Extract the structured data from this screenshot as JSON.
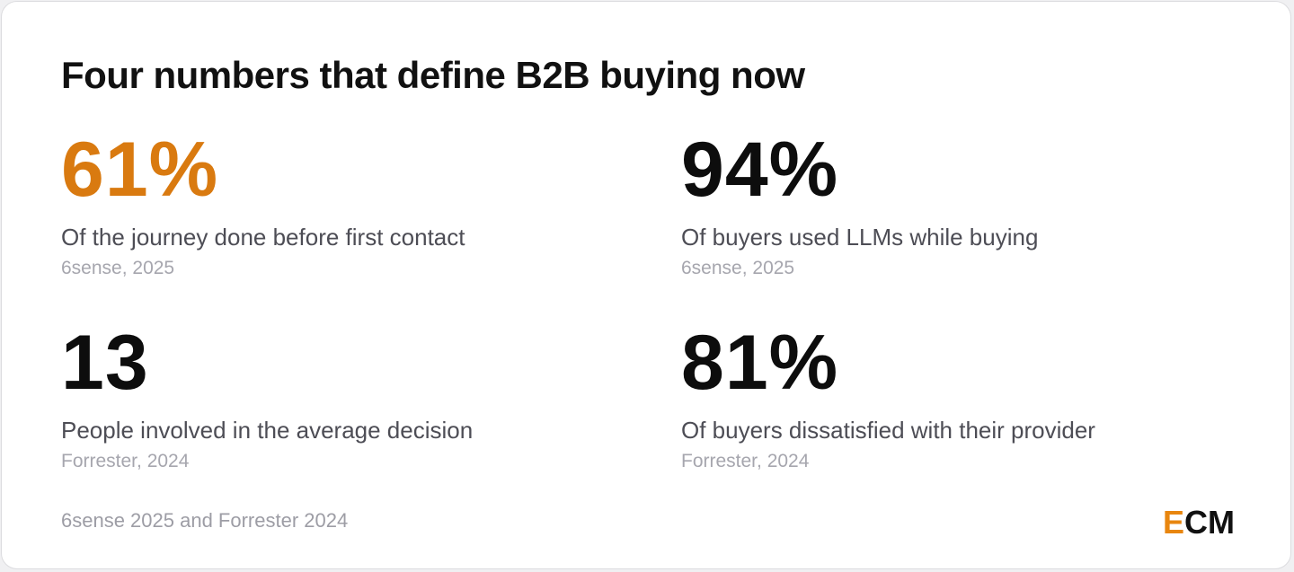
{
  "title": "Four numbers that define B2B buying now",
  "stats": [
    {
      "value": "61%",
      "label": "Of the journey done before first contact",
      "source": "6sense, 2025"
    },
    {
      "value": "94%",
      "label": "Of buyers used LLMs while buying",
      "source": "6sense, 2025"
    },
    {
      "value": "13",
      "label": "People involved in the average decision",
      "source": "Forrester, 2024"
    },
    {
      "value": "81%",
      "label": "Of buyers dissatisfied with their provider",
      "source": "Forrester, 2024"
    }
  ],
  "footnote": "6sense 2025 and Forrester 2024",
  "logo": {
    "first_letter": "E",
    "rest": "CM"
  },
  "colors": {
    "accent": "#d97a10",
    "logo_accent": "#e8860f",
    "text": "#111111"
  }
}
